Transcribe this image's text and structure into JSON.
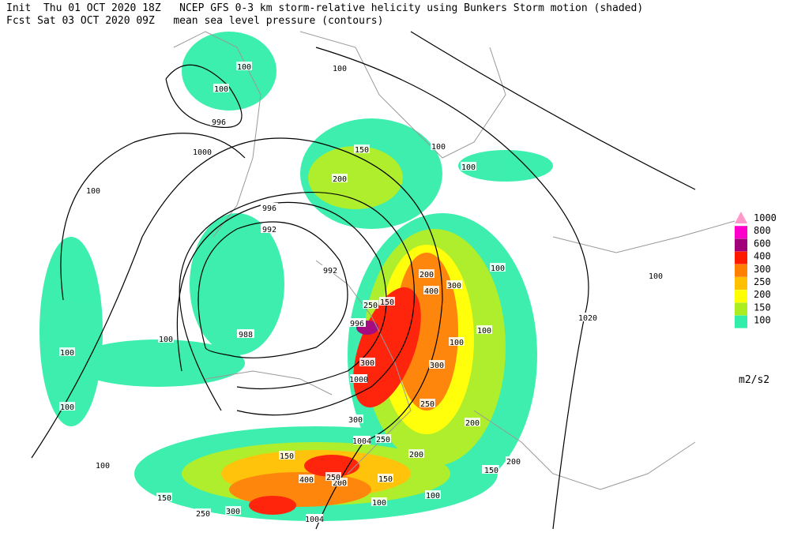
{
  "header": {
    "line1": "Init  Thu 01 OCT 2020 18Z   NCEP GFS 0-3 km storm-relative helicity using Bunkers Storm motion (shaded)",
    "line2": "Fcst Sat 03 OCT 2020 09Z   mean sea level pressure (contours)"
  },
  "legend": {
    "items": [
      {
        "label": "1000",
        "color": "#ff99cc"
      },
      {
        "label": "800",
        "color": "#ff00cc"
      },
      {
        "label": "600",
        "color": "#a0007a"
      },
      {
        "label": "400",
        "color": "#ff1a00"
      },
      {
        "label": "300",
        "color": "#ff8000"
      },
      {
        "label": "250",
        "color": "#ffc000"
      },
      {
        "label": "200",
        "color": "#ffff00"
      },
      {
        "label": "150",
        "color": "#aaee22"
      },
      {
        "label": "100",
        "color": "#33eeaa"
      }
    ],
    "unit": "m2/s2"
  },
  "contour_labels": [
    "996",
    "1000",
    "996",
    "992",
    "992",
    "988",
    "996",
    "1000",
    "1004",
    "1004",
    "1020"
  ],
  "helicity_labels": [
    "100",
    "100",
    "100",
    "100",
    "100",
    "100",
    "100",
    "100",
    "100",
    "100",
    "100",
    "100",
    "100",
    "100",
    "100",
    "100",
    "100",
    "150",
    "150",
    "150",
    "150",
    "150",
    "150",
    "200",
    "200",
    "200",
    "200",
    "200",
    "200",
    "250",
    "250",
    "250",
    "250",
    "250",
    "300",
    "300",
    "300",
    "300",
    "300",
    "400",
    "400"
  ]
}
